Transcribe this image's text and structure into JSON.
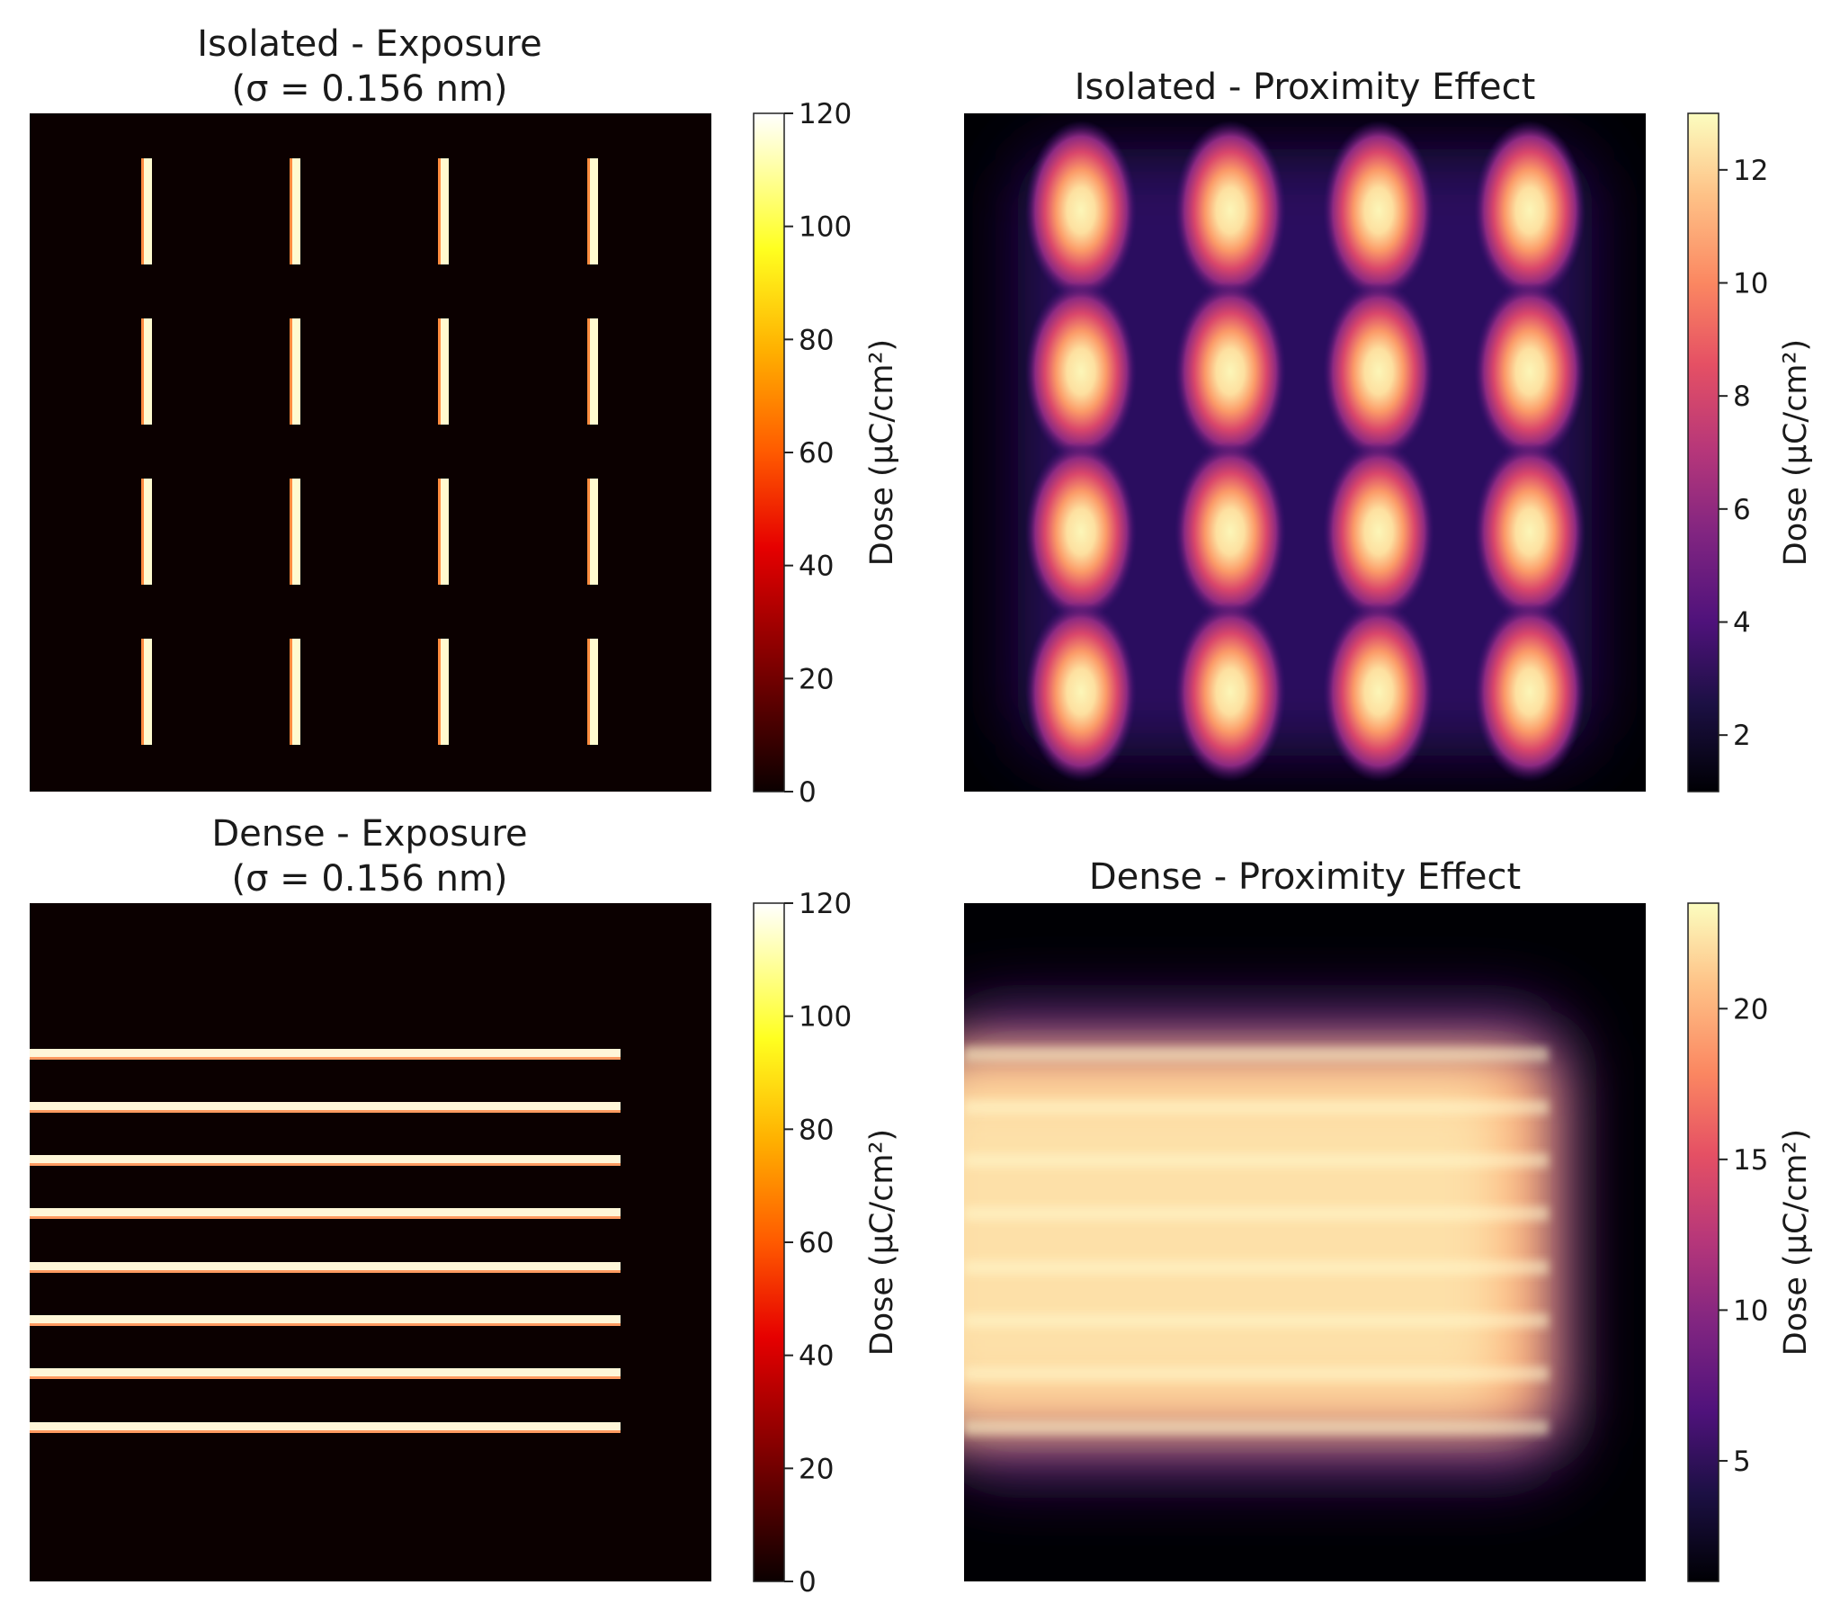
{
  "chart_data": [
    {
      "type": "heatmap",
      "title": "Isolated - Exposure",
      "subtitle": "(σ = 0.156 nm)",
      "pattern": "isolated",
      "colormap": "hot",
      "colorbar": {
        "label": "Dose (μC/cm²)",
        "min": 0,
        "max": 120,
        "ticks": [
          0,
          20,
          40,
          60,
          80,
          100,
          120
        ]
      },
      "grid": false
    },
    {
      "type": "heatmap",
      "title": "Isolated - Proximity Effect",
      "subtitle": "",
      "pattern": "isolated",
      "colormap": "magma",
      "colorbar": {
        "label": "Dose (μC/cm²)",
        "min": 1,
        "max": 13,
        "ticks": [
          2,
          4,
          6,
          8,
          10,
          12
        ]
      },
      "grid": false
    },
    {
      "type": "heatmap",
      "title": "Dense - Exposure",
      "subtitle": "(σ = 0.156 nm)",
      "pattern": "dense",
      "colormap": "hot",
      "colorbar": {
        "label": "Dose (μC/cm²)",
        "min": 0,
        "max": 120,
        "ticks": [
          0,
          20,
          40,
          60,
          80,
          100,
          120
        ]
      },
      "grid": false
    },
    {
      "type": "heatmap",
      "title": "Dense - Proximity Effect",
      "subtitle": "",
      "pattern": "dense",
      "colormap": "magma",
      "colorbar": {
        "label": "Dose (μC/cm²)",
        "min": 1,
        "max": 23.5,
        "ticks": [
          5,
          10,
          15,
          20
        ]
      },
      "grid": false
    }
  ]
}
